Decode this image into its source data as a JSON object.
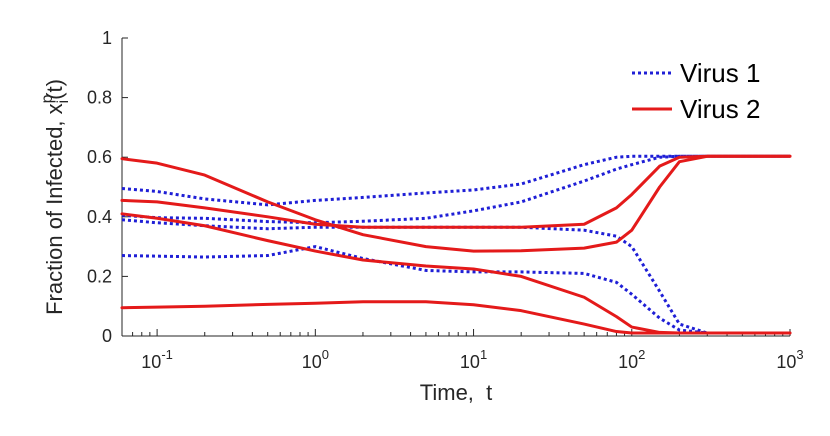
{
  "chart_data": {
    "type": "line",
    "title": "",
    "xlabel": "Time,  t",
    "ylabel": "Fraction of Infected, x_i^p(t)",
    "ylabel_main": "Fraction of Infected, x",
    "ylabel_sup": "p",
    "ylabel_sub": "i",
    "ylabel_tail": "(t)",
    "xscale": "log",
    "xlim": [
      0.06,
      1000
    ],
    "ylim": [
      0,
      1
    ],
    "x_ticks": [
      {
        "base": "10",
        "exp": "-1",
        "value": 0.1
      },
      {
        "base": "10",
        "exp": "0",
        "value": 1
      },
      {
        "base": "10",
        "exp": "1",
        "value": 10
      },
      {
        "base": "10",
        "exp": "2",
        "value": 100
      },
      {
        "base": "10",
        "exp": "3",
        "value": 1000
      }
    ],
    "y_ticks": [
      {
        "label": "0",
        "value": 0
      },
      {
        "label": "0.2",
        "value": 0.2
      },
      {
        "label": "0.4",
        "value": 0.4
      },
      {
        "label": "0.6",
        "value": 0.6
      },
      {
        "label": "0.8",
        "value": 0.8
      },
      {
        "label": "1",
        "value": 1
      }
    ],
    "legend": {
      "position": "top-right",
      "entries": [
        {
          "label": "Virus 1",
          "style": "dotted",
          "color": "#1f1fd6"
        },
        {
          "label": "Virus 2",
          "style": "solid",
          "color": "#e41a1a"
        }
      ]
    },
    "x": [
      0.06,
      0.1,
      0.2,
      0.5,
      1,
      2,
      5,
      10,
      20,
      50,
      80,
      100,
      150,
      200,
      300,
      500,
      1000
    ],
    "series": [
      {
        "name": "Virus 1",
        "values": [
          0.495,
          0.485,
          0.46,
          0.44,
          0.455,
          0.465,
          0.48,
          0.49,
          0.51,
          0.575,
          0.6,
          0.603,
          0.603,
          0.603,
          0.603,
          0.603,
          0.603
        ]
      },
      {
        "name": "Virus 1",
        "values": [
          0.405,
          0.397,
          0.395,
          0.384,
          0.38,
          0.385,
          0.395,
          0.42,
          0.45,
          0.52,
          0.56,
          0.575,
          0.6,
          0.603,
          0.603,
          0.603,
          0.603
        ]
      },
      {
        "name": "Virus 1",
        "values": [
          0.39,
          0.38,
          0.37,
          0.36,
          0.365,
          0.365,
          0.365,
          0.365,
          0.365,
          0.355,
          0.335,
          0.3,
          0.15,
          0.04,
          0.01,
          0.01,
          0.01
        ]
      },
      {
        "name": "Virus 1",
        "values": [
          0.27,
          0.268,
          0.265,
          0.27,
          0.3,
          0.26,
          0.22,
          0.215,
          0.215,
          0.21,
          0.18,
          0.14,
          0.06,
          0.02,
          0.01,
          0.01,
          0.01
        ]
      },
      {
        "name": "Virus 2",
        "values": [
          0.595,
          0.58,
          0.54,
          0.45,
          0.39,
          0.34,
          0.3,
          0.285,
          0.286,
          0.295,
          0.315,
          0.355,
          0.5,
          0.585,
          0.603,
          0.603,
          0.603
        ]
      },
      {
        "name": "Virus 2",
        "values": [
          0.455,
          0.45,
          0.43,
          0.4,
          0.375,
          0.365,
          0.365,
          0.365,
          0.365,
          0.375,
          0.43,
          0.475,
          0.57,
          0.6,
          0.603,
          0.603,
          0.603
        ]
      },
      {
        "name": "Virus 2",
        "values": [
          0.41,
          0.395,
          0.37,
          0.32,
          0.285,
          0.255,
          0.235,
          0.225,
          0.2,
          0.13,
          0.065,
          0.03,
          0.012,
          0.01,
          0.01,
          0.01,
          0.01
        ]
      },
      {
        "name": "Virus 2",
        "values": [
          0.095,
          0.097,
          0.1,
          0.106,
          0.11,
          0.115,
          0.115,
          0.105,
          0.085,
          0.04,
          0.015,
          0.01,
          0.01,
          0.01,
          0.01,
          0.01,
          0.01
        ]
      }
    ]
  },
  "colors": {
    "virus1": "#1f1fd6",
    "virus2": "#e41a1a",
    "axis": "#262626"
  }
}
